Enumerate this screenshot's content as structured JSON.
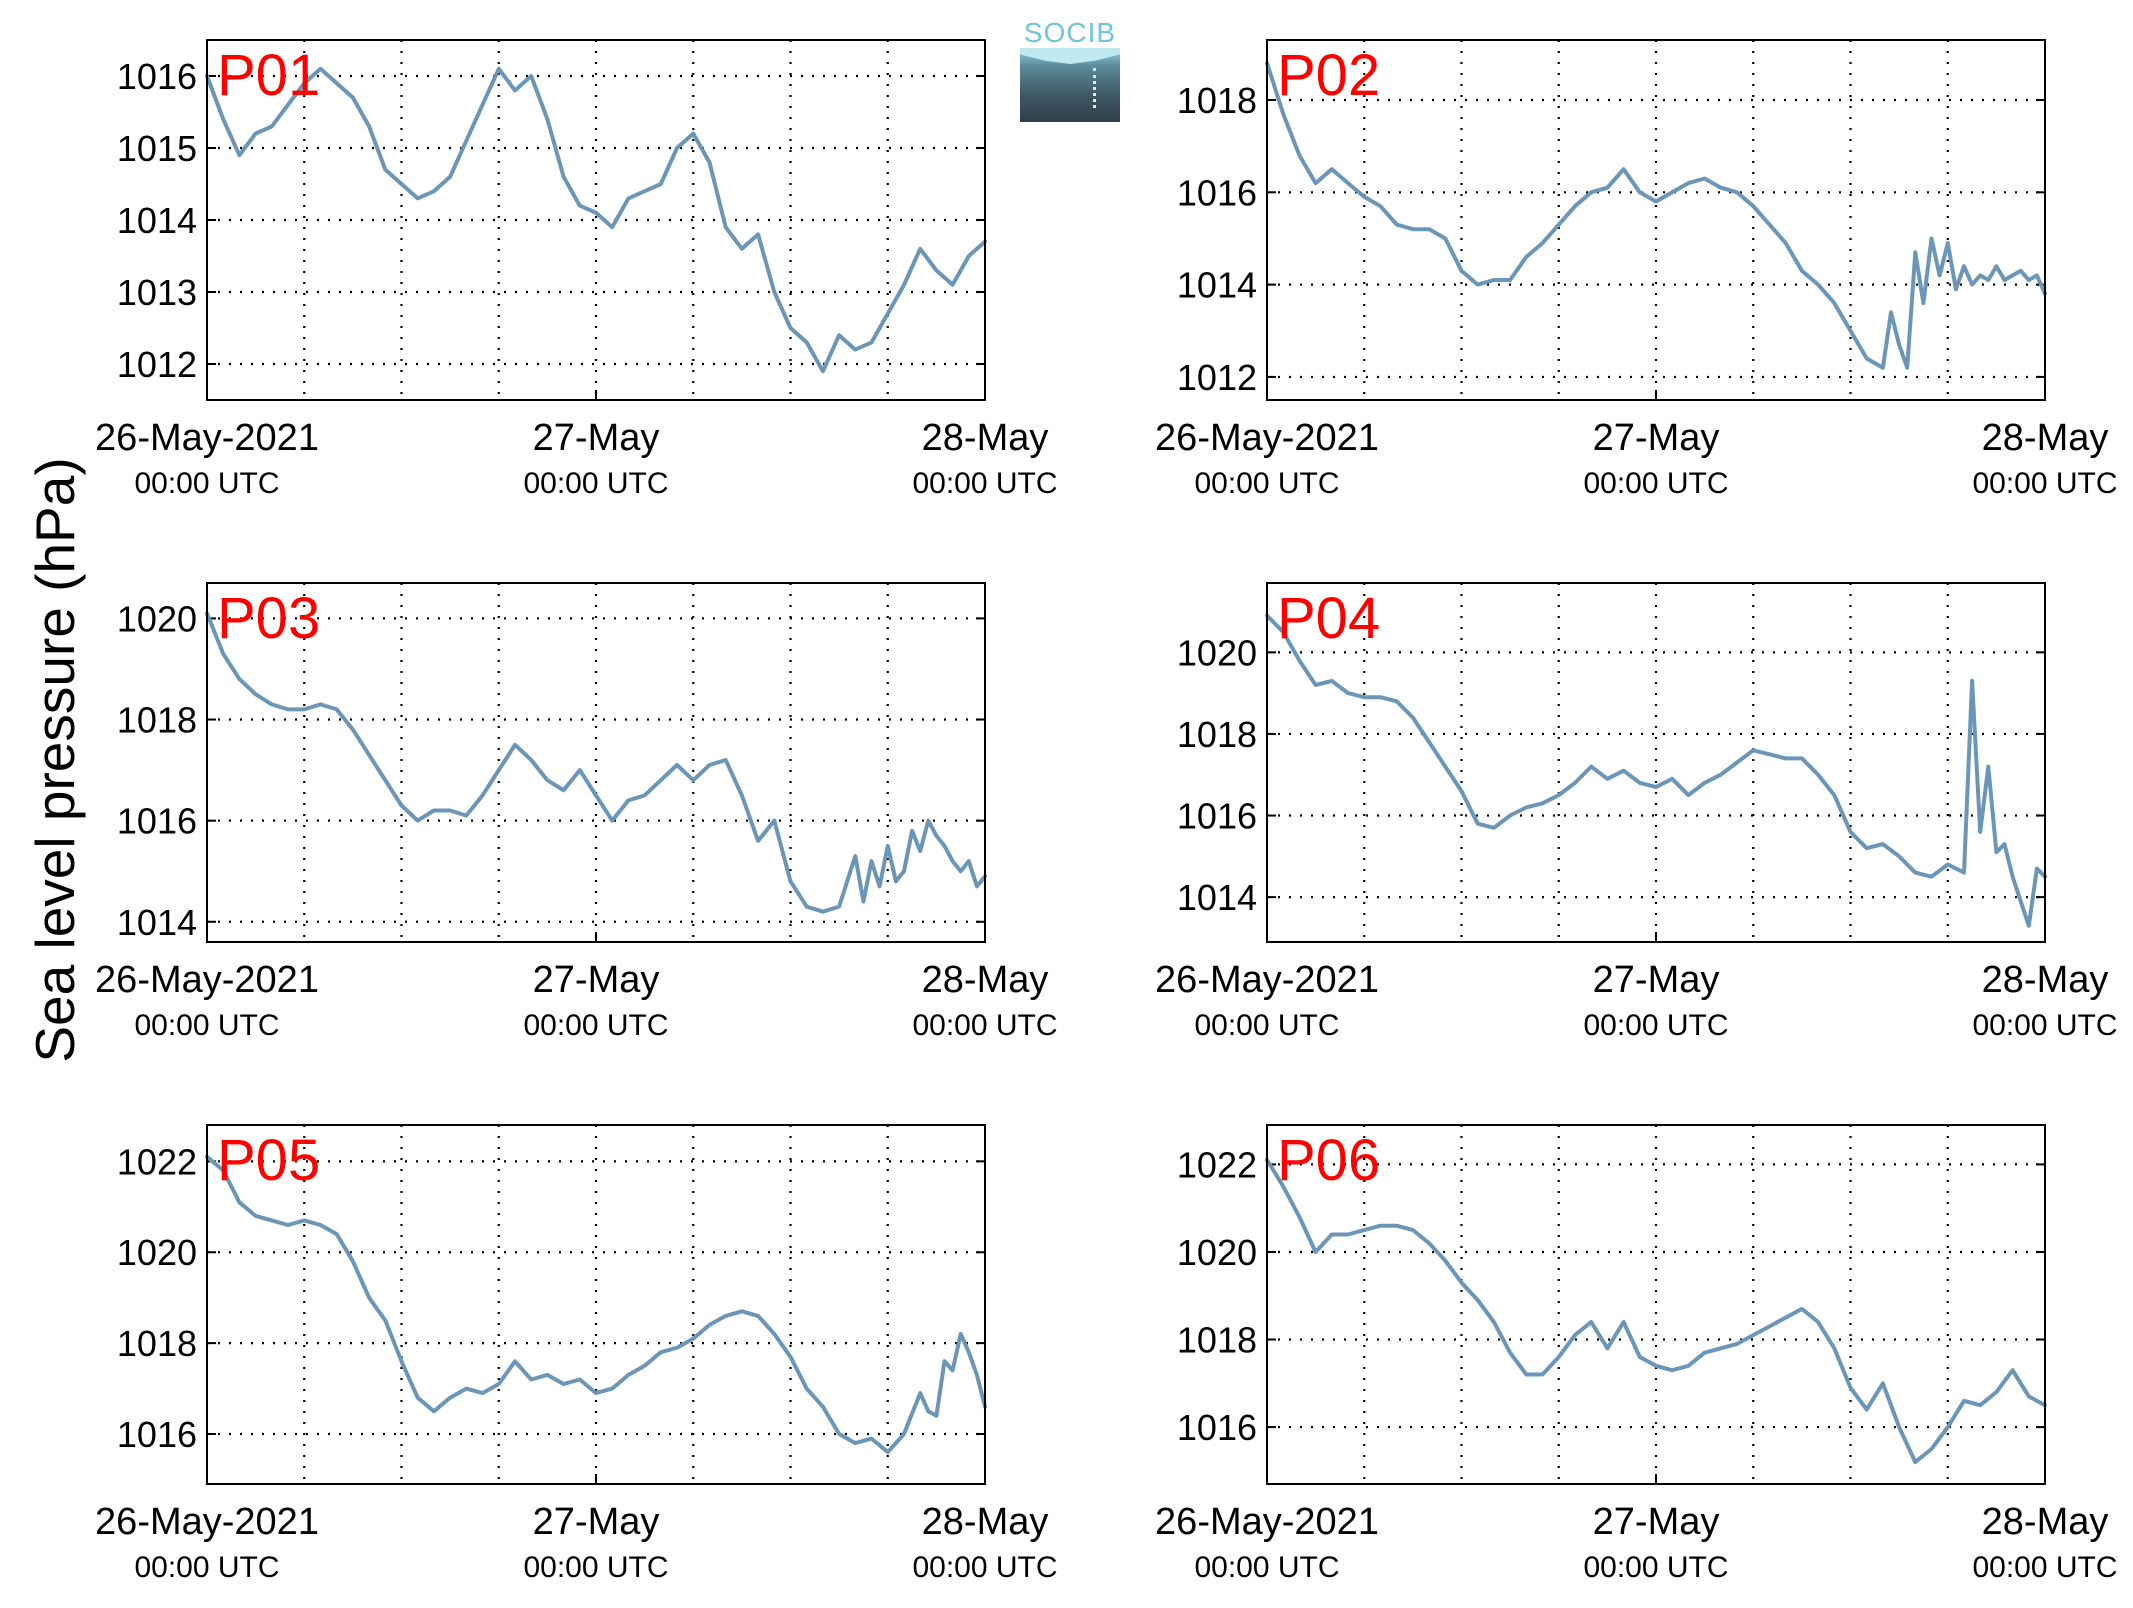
{
  "ylabel": "Sea level pressure (hPa)",
  "logo": {
    "text": "SOCIB"
  },
  "colors": {
    "line": "#6c96b8",
    "station_label": "#ff0000",
    "grid": "#000000"
  },
  "chart_data": [
    {
      "type": "line",
      "title": "P01",
      "x_ticks": [
        {
          "line1": "26-May-2021",
          "line2": "00:00 UTC"
        },
        {
          "line1": "27-May",
          "line2": "00:00 UTC"
        },
        {
          "line1": "28-May",
          "line2": "00:00 UTC"
        }
      ],
      "x_range_hours": [
        0,
        48
      ],
      "xgrid_every_hours": 6,
      "ylim": [
        1011.5,
        1016.5
      ],
      "yticks": [
        1012,
        1013,
        1014,
        1015,
        1016
      ],
      "grid": true,
      "x_hours": [
        0,
        1,
        2,
        3,
        4,
        5,
        6,
        7,
        8,
        9,
        10,
        11,
        12,
        13,
        14,
        15,
        16,
        17,
        18,
        19,
        20,
        21,
        22,
        23,
        24,
        25,
        26,
        27,
        28,
        29,
        30,
        31,
        32,
        33,
        34,
        35,
        36,
        37,
        38,
        39,
        40,
        41,
        42,
        43,
        44,
        45,
        46,
        47,
        48
      ],
      "values": [
        1016.0,
        1015.4,
        1014.9,
        1015.2,
        1015.3,
        1015.6,
        1015.9,
        1016.1,
        1015.9,
        1015.7,
        1015.3,
        1014.7,
        1014.5,
        1014.3,
        1014.4,
        1014.6,
        1015.1,
        1015.6,
        1016.1,
        1015.8,
        1016.0,
        1015.4,
        1014.6,
        1014.2,
        1014.1,
        1013.9,
        1014.3,
        1014.4,
        1014.5,
        1015.0,
        1015.2,
        1014.8,
        1013.9,
        1013.6,
        1013.8,
        1013.0,
        1012.5,
        1012.3,
        1011.9,
        1012.4,
        1012.2,
        1012.3,
        1012.7,
        1013.1,
        1013.6,
        1013.3,
        1013.1,
        1013.5,
        1013.7
      ]
    },
    {
      "type": "line",
      "title": "P02",
      "x_ticks": [
        {
          "line1": "26-May-2021",
          "line2": "00:00 UTC"
        },
        {
          "line1": "27-May",
          "line2": "00:00 UTC"
        },
        {
          "line1": "28-May",
          "line2": "00:00 UTC"
        }
      ],
      "x_range_hours": [
        0,
        48
      ],
      "xgrid_every_hours": 6,
      "ylim": [
        1011.5,
        1019.3
      ],
      "yticks": [
        1012,
        1014,
        1016,
        1018
      ],
      "grid": true,
      "x_hours": [
        0,
        1,
        2,
        3,
        4,
        5,
        6,
        7,
        8,
        9,
        10,
        11,
        12,
        13,
        14,
        15,
        16,
        17,
        18,
        19,
        20,
        21,
        22,
        23,
        24,
        25,
        26,
        27,
        28,
        29,
        30,
        31,
        32,
        33,
        34,
        35,
        36,
        37,
        38,
        38.5,
        39,
        39.5,
        40,
        40.5,
        41,
        41.5,
        42,
        42.5,
        43,
        43.5,
        44,
        44.5,
        45,
        45.5,
        46,
        46.5,
        47,
        47.5,
        48
      ],
      "values": [
        1018.8,
        1017.7,
        1016.8,
        1016.2,
        1016.5,
        1016.2,
        1015.9,
        1015.7,
        1015.3,
        1015.2,
        1015.2,
        1015.0,
        1014.3,
        1014.0,
        1014.1,
        1014.1,
        1014.6,
        1014.9,
        1015.3,
        1015.7,
        1016.0,
        1016.1,
        1016.5,
        1016.0,
        1015.8,
        1016.0,
        1016.2,
        1016.3,
        1016.1,
        1016.0,
        1015.7,
        1015.3,
        1014.9,
        1014.3,
        1014.0,
        1013.6,
        1013.0,
        1012.4,
        1012.2,
        1013.4,
        1012.7,
        1012.2,
        1014.7,
        1013.6,
        1015.0,
        1014.2,
        1014.9,
        1013.9,
        1014.4,
        1014.0,
        1014.2,
        1014.1,
        1014.4,
        1014.1,
        1014.2,
        1014.3,
        1014.1,
        1014.2,
        1013.8
      ]
    },
    {
      "type": "line",
      "title": "P03",
      "x_ticks": [
        {
          "line1": "26-May-2021",
          "line2": "00:00 UTC"
        },
        {
          "line1": "27-May",
          "line2": "00:00 UTC"
        },
        {
          "line1": "28-May",
          "line2": "00:00 UTC"
        }
      ],
      "x_range_hours": [
        0,
        48
      ],
      "xgrid_every_hours": 6,
      "ylim": [
        1013.6,
        1020.7
      ],
      "yticks": [
        1014,
        1016,
        1018,
        1020
      ],
      "grid": true,
      "x_hours": [
        0,
        1,
        2,
        3,
        4,
        5,
        6,
        7,
        8,
        9,
        10,
        11,
        12,
        13,
        14,
        15,
        16,
        17,
        18,
        19,
        20,
        21,
        22,
        23,
        24,
        25,
        26,
        27,
        28,
        29,
        30,
        31,
        32,
        33,
        34,
        35,
        36,
        37,
        38,
        39,
        40,
        40.5,
        41,
        41.5,
        42,
        42.5,
        43,
        43.5,
        44,
        44.5,
        45,
        45.5,
        46,
        46.5,
        47,
        47.5,
        48
      ],
      "values": [
        1020.1,
        1019.3,
        1018.8,
        1018.5,
        1018.3,
        1018.2,
        1018.2,
        1018.3,
        1018.2,
        1017.8,
        1017.3,
        1016.8,
        1016.3,
        1016.0,
        1016.2,
        1016.2,
        1016.1,
        1016.5,
        1017.0,
        1017.5,
        1017.2,
        1016.8,
        1016.6,
        1017.0,
        1016.5,
        1016.0,
        1016.4,
        1016.5,
        1016.8,
        1017.1,
        1016.8,
        1017.1,
        1017.2,
        1016.5,
        1015.6,
        1016.0,
        1014.8,
        1014.3,
        1014.2,
        1014.3,
        1015.3,
        1014.4,
        1015.2,
        1014.7,
        1015.5,
        1014.8,
        1015.0,
        1015.8,
        1015.4,
        1016.0,
        1015.7,
        1015.5,
        1015.2,
        1015.0,
        1015.2,
        1014.7,
        1014.9
      ]
    },
    {
      "type": "line",
      "title": "P04",
      "x_ticks": [
        {
          "line1": "26-May-2021",
          "line2": "00:00 UTC"
        },
        {
          "line1": "27-May",
          "line2": "00:00 UTC"
        },
        {
          "line1": "28-May",
          "line2": "00:00 UTC"
        }
      ],
      "x_range_hours": [
        0,
        48
      ],
      "xgrid_every_hours": 6,
      "ylim": [
        1012.9,
        1021.7
      ],
      "yticks": [
        1014,
        1016,
        1018,
        1020
      ],
      "grid": true,
      "x_hours": [
        0,
        1,
        2,
        3,
        4,
        5,
        6,
        7,
        8,
        9,
        10,
        11,
        12,
        13,
        14,
        15,
        16,
        17,
        18,
        19,
        20,
        21,
        22,
        23,
        24,
        25,
        26,
        27,
        28,
        29,
        30,
        31,
        32,
        33,
        34,
        35,
        36,
        37,
        38,
        39,
        40,
        41,
        42,
        43,
        43.5,
        44,
        44.5,
        45,
        45.5,
        46,
        46.5,
        47,
        47.5,
        48
      ],
      "values": [
        1020.9,
        1020.5,
        1019.8,
        1019.2,
        1019.3,
        1019.0,
        1018.9,
        1018.9,
        1018.8,
        1018.4,
        1017.8,
        1017.2,
        1016.6,
        1015.8,
        1015.7,
        1016.0,
        1016.2,
        1016.3,
        1016.5,
        1016.8,
        1017.2,
        1016.9,
        1017.1,
        1016.8,
        1016.7,
        1016.9,
        1016.5,
        1016.8,
        1017.0,
        1017.3,
        1017.6,
        1017.5,
        1017.4,
        1017.4,
        1017.0,
        1016.5,
        1015.6,
        1015.2,
        1015.3,
        1015.0,
        1014.6,
        1014.5,
        1014.8,
        1014.6,
        1019.3,
        1015.6,
        1017.2,
        1015.1,
        1015.3,
        1014.5,
        1013.9,
        1013.3,
        1014.7,
        1014.5
      ]
    },
    {
      "type": "line",
      "title": "P05",
      "x_ticks": [
        {
          "line1": "26-May-2021",
          "line2": "00:00 UTC"
        },
        {
          "line1": "27-May",
          "line2": "00:00 UTC"
        },
        {
          "line1": "28-May",
          "line2": "00:00 UTC"
        }
      ],
      "x_range_hours": [
        0,
        48
      ],
      "xgrid_every_hours": 6,
      "ylim": [
        1014.9,
        1022.8
      ],
      "yticks": [
        1016,
        1018,
        1020,
        1022
      ],
      "grid": true,
      "x_hours": [
        0,
        1,
        2,
        3,
        4,
        5,
        6,
        7,
        8,
        9,
        10,
        11,
        12,
        13,
        14,
        15,
        16,
        17,
        18,
        19,
        20,
        21,
        22,
        23,
        24,
        25,
        26,
        27,
        28,
        29,
        30,
        31,
        32,
        33,
        34,
        35,
        36,
        37,
        38,
        39,
        40,
        41,
        42,
        43,
        44,
        44.5,
        45,
        45.5,
        46,
        46.5,
        47,
        47.5,
        48
      ],
      "values": [
        1022.1,
        1021.8,
        1021.1,
        1020.8,
        1020.7,
        1020.6,
        1020.7,
        1020.6,
        1020.4,
        1019.8,
        1019.0,
        1018.5,
        1017.6,
        1016.8,
        1016.5,
        1016.8,
        1017.0,
        1016.9,
        1017.1,
        1017.6,
        1017.2,
        1017.3,
        1017.1,
        1017.2,
        1016.9,
        1017.0,
        1017.3,
        1017.5,
        1017.8,
        1017.9,
        1018.1,
        1018.4,
        1018.6,
        1018.7,
        1018.6,
        1018.2,
        1017.7,
        1017.0,
        1016.6,
        1016.0,
        1015.8,
        1015.9,
        1015.6,
        1016.0,
        1016.9,
        1016.5,
        1016.4,
        1017.6,
        1017.4,
        1018.2,
        1017.8,
        1017.3,
        1016.6
      ]
    },
    {
      "type": "line",
      "title": "P06",
      "x_ticks": [
        {
          "line1": "26-May-2021",
          "line2": "00:00 UTC"
        },
        {
          "line1": "27-May",
          "line2": "00:00 UTC"
        },
        {
          "line1": "28-May",
          "line2": "00:00 UTC"
        }
      ],
      "x_range_hours": [
        0,
        48
      ],
      "xgrid_every_hours": 6,
      "ylim": [
        1014.7,
        1022.9
      ],
      "yticks": [
        1016,
        1018,
        1020,
        1022
      ],
      "grid": true,
      "x_hours": [
        0,
        1,
        2,
        3,
        4,
        5,
        6,
        7,
        8,
        9,
        10,
        11,
        12,
        13,
        14,
        15,
        16,
        17,
        18,
        19,
        20,
        21,
        22,
        23,
        24,
        25,
        26,
        27,
        28,
        29,
        30,
        31,
        32,
        33,
        34,
        35,
        36,
        37,
        38,
        39,
        40,
        41,
        42,
        43,
        44,
        45,
        46,
        47,
        48
      ],
      "values": [
        1022.1,
        1021.5,
        1020.8,
        1020.0,
        1020.4,
        1020.4,
        1020.5,
        1020.6,
        1020.6,
        1020.5,
        1020.2,
        1019.8,
        1019.3,
        1018.9,
        1018.4,
        1017.7,
        1017.2,
        1017.2,
        1017.6,
        1018.1,
        1018.4,
        1017.8,
        1018.4,
        1017.6,
        1017.4,
        1017.3,
        1017.4,
        1017.7,
        1017.8,
        1017.9,
        1018.1,
        1018.3,
        1018.5,
        1018.7,
        1018.4,
        1017.8,
        1016.9,
        1016.4,
        1017.0,
        1016.0,
        1015.2,
        1015.5,
        1016.0,
        1016.6,
        1016.5,
        1016.8,
        1017.3,
        1016.7,
        1016.5
      ]
    }
  ]
}
